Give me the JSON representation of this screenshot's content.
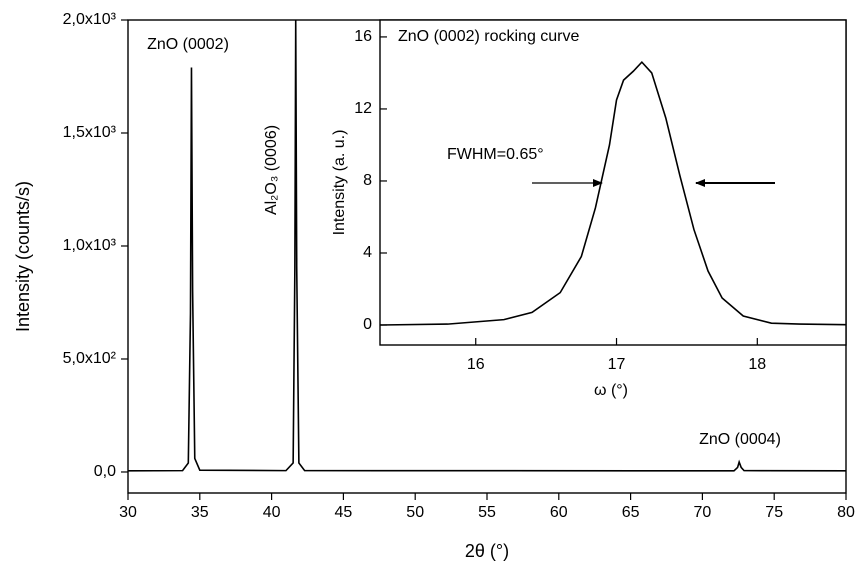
{
  "chart_data": [
    {
      "type": "line",
      "xlabel": "2θ (°)",
      "ylabel": "Intensity (counts/s)",
      "color": "#000000",
      "x": [
        30,
        33.8,
        34.2,
        34.35,
        34.42,
        34.5,
        34.65,
        35.0,
        41.0,
        41.5,
        41.62,
        41.68,
        41.75,
        41.9,
        42.3,
        72.2,
        72.45,
        72.56,
        72.7,
        72.9,
        80
      ],
      "values": [
        5,
        6,
        40,
        700,
        1790,
        800,
        60,
        8,
        6,
        40,
        900,
        2000,
        900,
        40,
        6,
        5,
        20,
        44,
        20,
        6,
        5
      ],
      "xlim": [
        30,
        80
      ],
      "xticks": [
        30,
        35,
        40,
        45,
        50,
        55,
        60,
        65,
        70,
        75,
        80
      ],
      "ylim": [
        -93,
        2000
      ],
      "yticks": [
        {
          "value": 0,
          "label": "0,0"
        },
        {
          "value": 500,
          "label": "5,0x10²"
        },
        {
          "value": 1000,
          "label": "1,0x10³"
        },
        {
          "value": 1500,
          "label": "1,5x10³"
        },
        {
          "value": 2000,
          "label": "2,0x10³"
        }
      ],
      "annotations": [
        "ZnO (0002)",
        "Al₂O₃ (0006)",
        "ZnO (0004)"
      ]
    },
    {
      "type": "line",
      "title": "ZnO (0002) rocking curve",
      "xlabel": "ω (°)",
      "ylabel": "Intensity (a. u.)",
      "color": "#000000",
      "x": [
        15.32,
        15.8,
        16.2,
        16.4,
        16.6,
        16.75,
        16.85,
        16.95,
        17.0,
        17.05,
        17.12,
        17.18,
        17.25,
        17.35,
        17.45,
        17.55,
        17.65,
        17.75,
        17.9,
        18.1,
        18.3,
        18.63
      ],
      "values": [
        0.0,
        0.05,
        0.3,
        0.7,
        1.8,
        3.8,
        6.5,
        10,
        12.5,
        13.6,
        14.1,
        14.6,
        14.0,
        11.5,
        8.3,
        5.3,
        3.0,
        1.5,
        0.5,
        0.1,
        0.05,
        0.02
      ],
      "xlim": [
        15.32,
        18.63
      ],
      "xticks": [
        16,
        17,
        18
      ],
      "ylim": [
        -1.11,
        16.94
      ],
      "yticks": [
        0,
        4,
        8,
        12,
        16
      ],
      "annotations": [
        "FWHM=0.65°"
      ]
    }
  ]
}
